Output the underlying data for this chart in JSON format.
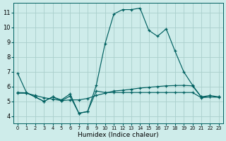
{
  "xlabel": "Humidex (Indice chaleur)",
  "background_color": "#ceecea",
  "grid_color": "#aacfcc",
  "line_color": "#006060",
  "xlim": [
    -0.5,
    23.5
  ],
  "ylim": [
    3.5,
    11.65
  ],
  "yticks": [
    4,
    5,
    6,
    7,
    8,
    9,
    10,
    11
  ],
  "line1_x": [
    0,
    1,
    2,
    3,
    4,
    5,
    6,
    7,
    8,
    9,
    10,
    11,
    12,
    13,
    14,
    15,
    16,
    17,
    18,
    19,
    20,
    21,
    22,
    23
  ],
  "line1_y": [
    6.9,
    5.6,
    5.3,
    5.0,
    5.3,
    5.1,
    5.5,
    4.2,
    4.3,
    6.1,
    8.9,
    10.9,
    11.2,
    11.2,
    11.3,
    9.8,
    9.4,
    9.9,
    8.4,
    7.0,
    6.1,
    5.3,
    5.4,
    5.3
  ],
  "line2_x": [
    0,
    1,
    2,
    3,
    4,
    5,
    6,
    7,
    8,
    9,
    10,
    11,
    12,
    13,
    14,
    15,
    16,
    17,
    18,
    19,
    20,
    21,
    22,
    23
  ],
  "line2_y": [
    5.55,
    5.55,
    5.4,
    5.25,
    5.15,
    5.05,
    5.1,
    5.1,
    5.2,
    5.4,
    5.55,
    5.7,
    5.75,
    5.82,
    5.9,
    5.95,
    6.0,
    6.05,
    6.07,
    6.08,
    6.05,
    5.3,
    5.3,
    5.3
  ],
  "line3_x": [
    0,
    1,
    2,
    3,
    4,
    5,
    6,
    7,
    8,
    9,
    10,
    11,
    12,
    13,
    14,
    15,
    16,
    17,
    18,
    19,
    20,
    21,
    22,
    23
  ],
  "line3_y": [
    5.6,
    5.58,
    5.3,
    5.0,
    5.3,
    5.05,
    5.35,
    4.2,
    4.32,
    5.7,
    5.6,
    5.6,
    5.6,
    5.6,
    5.6,
    5.6,
    5.6,
    5.6,
    5.6,
    5.6,
    5.6,
    5.25,
    5.3,
    5.28
  ]
}
